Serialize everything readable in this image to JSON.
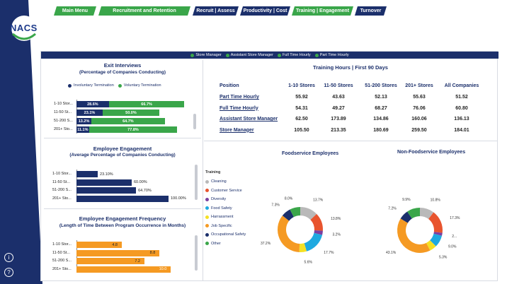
{
  "brand": {
    "logo_text": "NACS",
    "navy": "#1b2f6b",
    "green": "#3aa64a",
    "orange": "#f59a23"
  },
  "nav": {
    "tabs": [
      {
        "label": "Main Menu",
        "style": "green"
      },
      {
        "label": "Recruitment and Retention",
        "style": "green"
      },
      {
        "label": "Recruit | Assess",
        "style": "navy"
      },
      {
        "label": "Productivity | Cost",
        "style": "navy"
      },
      {
        "label": "Training | Engagement",
        "style": "green"
      },
      {
        "label": "Turnover",
        "style": "navy"
      }
    ]
  },
  "position_filter": {
    "options": [
      "Store Manager",
      "Assistant Store Manager",
      "Full Time Hourly",
      "Part Time Hourly"
    ]
  },
  "exit_interviews": {
    "title": "Exit Interviews",
    "subtitle": "(Percentage of Companies Conducting)",
    "legend": [
      "Involuntary Termination",
      "Voluntary Termination"
    ]
  },
  "employee_engagement": {
    "title": "Employee Engagement",
    "subtitle": "(Average Percentage of Companies Conducting)"
  },
  "engagement_frequency": {
    "title": "Employee Engagement Frequency",
    "subtitle": "(Length of Time Between Program Occurrence in Months)"
  },
  "training_hours": {
    "title": "Training Hours | First 90 Days",
    "columns": [
      "Position",
      "1-10 Stores",
      "11-50 Stores",
      "51-200 Stores",
      "201+ Stores",
      "All Companies"
    ],
    "rows": [
      {
        "position": "Part Time Hourly",
        "values": [
          "55.92",
          "43.63",
          "52.13",
          "55.63",
          "51.52"
        ]
      },
      {
        "position": "Full Time Hourly",
        "values": [
          "54.31",
          "49.27",
          "68.27",
          "76.06",
          "60.80"
        ]
      },
      {
        "position": "Assistant Store Manager",
        "values": [
          "62.50",
          "173.89",
          "134.86",
          "160.06",
          "136.13"
        ]
      },
      {
        "position": "Store Manager",
        "values": [
          "105.50",
          "213.35",
          "180.69",
          "259.50",
          "184.01"
        ]
      }
    ]
  },
  "training_legend": {
    "title": "Training",
    "items": [
      {
        "label": "Cleaning",
        "color": "#b9b9b9"
      },
      {
        "label": "Customer Service",
        "color": "#e8542e"
      },
      {
        "label": "Diversity",
        "color": "#7b3fa0"
      },
      {
        "label": "Food Safety",
        "color": "#1fa9e0"
      },
      {
        "label": "Harrassment",
        "color": "#f5e023"
      },
      {
        "label": "Job Specific",
        "color": "#f59a23"
      },
      {
        "label": "Occupational Safety",
        "color": "#1b2f6b"
      },
      {
        "label": "Other",
        "color": "#3aa64a"
      }
    ]
  },
  "donut_titles": {
    "foodservice": "Foodservice Employees",
    "non_foodservice": "Non-Foodservice Employees"
  },
  "chart_data": [
    {
      "type": "bar",
      "id": "exit_interviews",
      "stacked": true,
      "title": "Exit Interviews",
      "categories": [
        "1-10 Stor...",
        "11-50 St...",
        "51-200 S...",
        "201+ Sto..."
      ],
      "series": [
        {
          "name": "Involuntary Termination",
          "values": [
            28.6,
            23.1,
            13.2,
            11.1
          ],
          "labels": [
            "28.6%",
            "23.1%",
            "13.2%",
            "11.1%"
          ],
          "color": "#1b2f6b"
        },
        {
          "name": "Voluntary Termination",
          "values": [
            66.7,
            50.0,
            64.7,
            77.8
          ],
          "labels": [
            "66.7%",
            "50.0%",
            "64.7%",
            "77.8%"
          ],
          "color": "#3aa64a"
        }
      ]
    },
    {
      "type": "bar",
      "id": "employee_engagement",
      "title": "Employee Engagement",
      "categories": [
        "1-10 Stor...",
        "11-50 St...",
        "51-200 S...",
        "201+ Sto..."
      ],
      "values": [
        23.1,
        60.0,
        64.7,
        100.0
      ],
      "labels": [
        "23.10%",
        "60.00%",
        "64.70%",
        "100.00%"
      ],
      "color": "#1b2f6b",
      "xlim": [
        0,
        100
      ]
    },
    {
      "type": "bar",
      "id": "engagement_frequency",
      "title": "Employee Engagement Frequency",
      "categories": [
        "1-10 Stor...",
        "11-50 St...",
        "51-200 S...",
        "201+ Sto..."
      ],
      "values": [
        4.8,
        8.8,
        7.2,
        10.0
      ],
      "labels": [
        "4.8",
        "8.8",
        "7.2",
        "10.0"
      ],
      "color": "#f59a23",
      "xlim": [
        0,
        10.5
      ]
    },
    {
      "type": "pie",
      "donut": true,
      "id": "foodservice",
      "title": "Foodservice Employees",
      "labels": [
        "Cleaning",
        "Customer Service",
        "Diversity",
        "Food Safety",
        "Harrassment",
        "Job Specific",
        "Occupational Safety",
        "Other"
      ],
      "values": [
        13.7,
        13.8,
        3.2,
        17.7,
        5.6,
        37.2,
        7.3,
        8.0
      ],
      "value_labels": [
        "13.7%",
        "13.8%",
        "3.2%",
        "17.7%",
        "5.6%",
        "37.2%",
        "7.3%",
        "8.0%"
      ],
      "colors": [
        "#b9b9b9",
        "#e8542e",
        "#7b3fa0",
        "#1fa9e0",
        "#f5e023",
        "#f59a23",
        "#1b2f6b",
        "#3aa64a"
      ]
    },
    {
      "type": "pie",
      "donut": true,
      "id": "non_foodservice",
      "title": "Non-Foodservice Employees",
      "labels": [
        "Cleaning",
        "Customer Service",
        "Diversity",
        "Food Safety",
        "Harrassment",
        "Job Specific",
        "Occupational Safety",
        "Other"
      ],
      "values": [
        10.8,
        17.3,
        2.2,
        9.0,
        5.3,
        43.1,
        7.2,
        9.9
      ],
      "value_labels": [
        "10.8%",
        "17.3%",
        "2...",
        "9.0%",
        "5.3%",
        "43.1%",
        "7.2%",
        "9.9%"
      ],
      "colors": [
        "#b9b9b9",
        "#e8542e",
        "#7b3fa0",
        "#1fa9e0",
        "#f5e023",
        "#f59a23",
        "#1b2f6b",
        "#3aa64a"
      ]
    }
  ]
}
